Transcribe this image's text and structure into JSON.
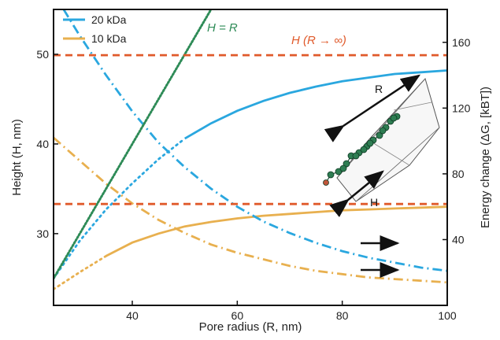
{
  "chart_data": {
    "type": "line",
    "xlabel": "Pore radius (R, nm)",
    "ylabel_left": "Height (H, nm)",
    "ylabel_right": "Energy change (ΔG, [kBT])",
    "xlim": [
      25,
      100
    ],
    "ylim_left": [
      22,
      55
    ],
    "ylim_right": [
      0,
      180
    ],
    "x_ticks": [
      40,
      60,
      80,
      100
    ],
    "y_ticks_left": [
      30,
      40,
      50
    ],
    "y_ticks_right": [
      40,
      80,
      120,
      160
    ],
    "legend": [
      {
        "name": "20 kDa",
        "color": "#2aa7df"
      },
      {
        "name": "10 kDa",
        "color": "#e8b04f"
      }
    ],
    "annotations": {
      "h_equals_r": "H = R",
      "h_limit": "H (R → ∞)",
      "inset_r": "R",
      "inset_h": "H"
    },
    "series": [
      {
        "name": "20 kDa",
        "axis": "left",
        "style": "solid",
        "color": "#2aa7df",
        "x": [
          50,
          55,
          60,
          65,
          70,
          75,
          80,
          85,
          90,
          95,
          100
        ],
        "y": [
          40.6,
          42.3,
          43.7,
          44.8,
          45.7,
          46.4,
          47.0,
          47.4,
          47.8,
          48.0,
          48.2
        ]
      },
      {
        "name": "20 kDa (extrapolated)",
        "axis": "left",
        "style": "dotted",
        "color": "#2aa7df",
        "x": [
          25,
          30,
          35,
          40,
          45,
          50
        ],
        "y": [
          25.0,
          29.2,
          32.7,
          35.6,
          38.3,
          40.6
        ]
      },
      {
        "name": "10 kDa",
        "axis": "left",
        "style": "solid",
        "color": "#e8b04f",
        "x": [
          35,
          40,
          45,
          50,
          55,
          60,
          65,
          70,
          75,
          80,
          85,
          90,
          95,
          100
        ],
        "y": [
          27.5,
          29.0,
          30.0,
          30.8,
          31.3,
          31.7,
          32.0,
          32.2,
          32.4,
          32.6,
          32.7,
          32.8,
          32.9,
          33.0
        ]
      },
      {
        "name": "10 kDa (extrapolated)",
        "axis": "left",
        "style": "dotted",
        "color": "#e8b04f",
        "x": [
          25,
          30,
          35
        ],
        "y": [
          23.8,
          25.7,
          27.5
        ]
      },
      {
        "name": "20 kDa ΔG",
        "axis": "right",
        "style": "dashdot",
        "color": "#2aa7df",
        "x": [
          25,
          30,
          35,
          40,
          45,
          50,
          55,
          60,
          65,
          70,
          75,
          80,
          85,
          90,
          95,
          100
        ],
        "y": [
          190,
          164,
          140,
          118,
          99,
          84,
          71,
          60,
          51,
          44,
          38,
          33,
          29,
          26,
          23,
          21
        ]
      },
      {
        "name": "10 kDa ΔG",
        "axis": "right",
        "style": "dashdot",
        "color": "#e8b04f",
        "x": [
          25,
          30,
          35,
          40,
          45,
          50,
          55,
          60,
          65,
          70,
          75,
          80,
          85,
          90,
          95,
          100
        ],
        "y": [
          102,
          88,
          74,
          62,
          52,
          44,
          37,
          32,
          28,
          24,
          21,
          19,
          17,
          16,
          15,
          14
        ]
      },
      {
        "name": "H = R",
        "axis": "left",
        "style": "dotted-fine",
        "color": "#2e8b57",
        "x": [
          25,
          55
        ],
        "y": [
          25,
          55
        ]
      },
      {
        "name": "H limit 20 kDa",
        "axis": "left",
        "style": "dashed",
        "color": "#e05a2b",
        "x": [
          25,
          100
        ],
        "y": [
          49.9,
          49.9
        ]
      },
      {
        "name": "H limit 10 kDa",
        "axis": "left",
        "style": "dashed",
        "color": "#e05a2b",
        "x": [
          25,
          100
        ],
        "y": [
          33.3,
          33.3
        ]
      }
    ]
  }
}
